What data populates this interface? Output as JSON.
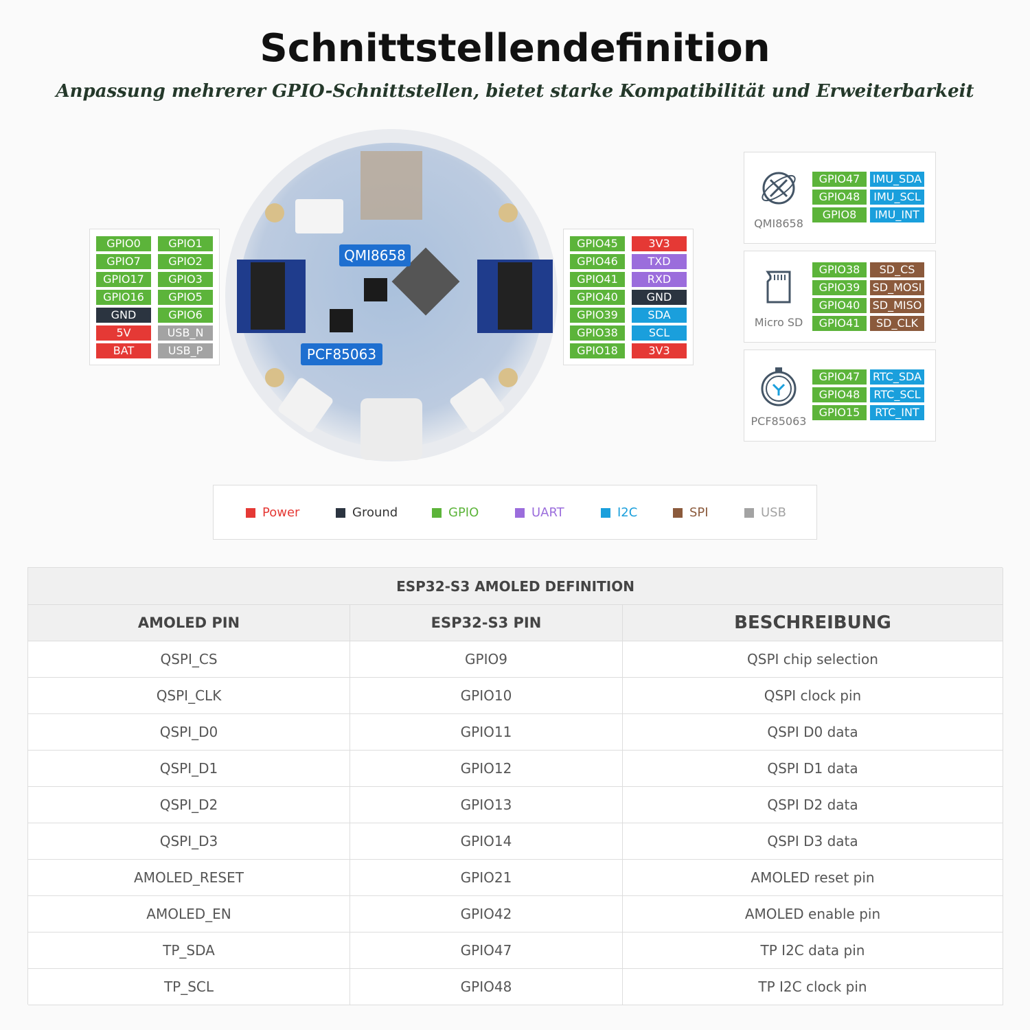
{
  "header": {
    "title": "Schnittstellendefinition",
    "subtitle": "Anpassung mehrerer GPIO-Schnittstellen, bietet starke Kompatibilität und Erweiterbarkeit"
  },
  "board": {
    "callouts": [
      "QMI8658",
      "PCF85063"
    ]
  },
  "left_header": [
    [
      {
        "label": "GPIO0",
        "color": "#5cb43a"
      },
      {
        "label": "GPIO1",
        "color": "#5cb43a"
      }
    ],
    [
      {
        "label": "GPIO7",
        "color": "#5cb43a"
      },
      {
        "label": "GPIO2",
        "color": "#5cb43a"
      }
    ],
    [
      {
        "label": "GPIO17",
        "color": "#5cb43a"
      },
      {
        "label": "GPIO3",
        "color": "#5cb43a"
      }
    ],
    [
      {
        "label": "GPIO16",
        "color": "#5cb43a"
      },
      {
        "label": "GPIO5",
        "color": "#5cb43a"
      }
    ],
    [
      {
        "label": "GND",
        "color": "#2b3440"
      },
      {
        "label": "GPIO6",
        "color": "#5cb43a"
      }
    ],
    [
      {
        "label": "5V",
        "color": "#e53935"
      },
      {
        "label": "USB_N",
        "color": "#a3a3a3"
      }
    ],
    [
      {
        "label": "BAT",
        "color": "#e53935"
      },
      {
        "label": "USB_P",
        "color": "#a3a3a3"
      }
    ]
  ],
  "right_header": [
    [
      {
        "label": "GPIO45",
        "color": "#5cb43a"
      },
      {
        "label": "3V3",
        "color": "#e53935"
      }
    ],
    [
      {
        "label": "GPIO46",
        "color": "#5cb43a"
      },
      {
        "label": "TXD",
        "color": "#9b6ddc"
      }
    ],
    [
      {
        "label": "GPIO41",
        "color": "#5cb43a"
      },
      {
        "label": "RXD",
        "color": "#9b6ddc"
      }
    ],
    [
      {
        "label": "GPIO40",
        "color": "#5cb43a"
      },
      {
        "label": "GND",
        "color": "#2b3440"
      }
    ],
    [
      {
        "label": "GPIO39",
        "color": "#5cb43a"
      },
      {
        "label": "SDA",
        "color": "#1a9fdc"
      }
    ],
    [
      {
        "label": "GPIO38",
        "color": "#5cb43a"
      },
      {
        "label": "SCL",
        "color": "#1a9fdc"
      }
    ],
    [
      {
        "label": "GPIO18",
        "color": "#5cb43a"
      },
      {
        "label": "3V3",
        "color": "#e53935"
      }
    ]
  ],
  "modules": [
    {
      "name": "QMI8658",
      "pins": [
        [
          {
            "label": "GPIO47",
            "color": "#5cb43a"
          },
          {
            "label": "IMU_SDA",
            "color": "#1a9fdc"
          }
        ],
        [
          {
            "label": "GPIO48",
            "color": "#5cb43a"
          },
          {
            "label": "IMU_SCL",
            "color": "#1a9fdc"
          }
        ],
        [
          {
            "label": "GPIO8",
            "color": "#5cb43a"
          },
          {
            "label": "IMU_INT",
            "color": "#1a9fdc"
          }
        ]
      ]
    },
    {
      "name": "Micro SD",
      "pins": [
        [
          {
            "label": "GPIO38",
            "color": "#5cb43a"
          },
          {
            "label": "SD_CS",
            "color": "#8b5a3c"
          }
        ],
        [
          {
            "label": "GPIO39",
            "color": "#5cb43a"
          },
          {
            "label": "SD_MOSI",
            "color": "#8b5a3c"
          }
        ],
        [
          {
            "label": "GPIO40",
            "color": "#5cb43a"
          },
          {
            "label": "SD_MISO",
            "color": "#8b5a3c"
          }
        ],
        [
          {
            "label": "GPIO41",
            "color": "#5cb43a"
          },
          {
            "label": "SD_CLK",
            "color": "#8b5a3c"
          }
        ]
      ]
    },
    {
      "name": "PCF85063",
      "pins": [
        [
          {
            "label": "GPIO47",
            "color": "#5cb43a"
          },
          {
            "label": "RTC_SDA",
            "color": "#1a9fdc"
          }
        ],
        [
          {
            "label": "GPIO48",
            "color": "#5cb43a"
          },
          {
            "label": "RTC_SCL",
            "color": "#1a9fdc"
          }
        ],
        [
          {
            "label": "GPIO15",
            "color": "#5cb43a"
          },
          {
            "label": "RTC_INT",
            "color": "#1a9fdc"
          }
        ]
      ]
    }
  ],
  "legend": [
    {
      "name": "Power",
      "color": "#e53935"
    },
    {
      "name": "Ground",
      "color": "#2b3440"
    },
    {
      "name": "GPIO",
      "color": "#5cb43a"
    },
    {
      "name": "UART",
      "color": "#9b6ddc"
    },
    {
      "name": "I2C",
      "color": "#1a9fdc"
    },
    {
      "name": "SPI",
      "color": "#8b5a3c"
    },
    {
      "name": "USB",
      "color": "#a3a3a3"
    }
  ],
  "table": {
    "title": "ESP32-S3 AMOLED DEFINITION",
    "columns": [
      "AMOLED PIN",
      "ESP32-S3 PIN",
      "BESCHREIBUNG"
    ],
    "rows": [
      [
        "QSPI_CS",
        "GPIO9",
        "QSPI chip selection"
      ],
      [
        "QSPI_CLK",
        "GPIO10",
        "QSPI clock pin"
      ],
      [
        "QSPI_D0",
        "GPIO11",
        "QSPI D0 data"
      ],
      [
        "QSPI_D1",
        "GPIO12",
        "QSPI D1 data"
      ],
      [
        "QSPI_D2",
        "GPIO13",
        "QSPI D2 data"
      ],
      [
        "QSPI_D3",
        "GPIO14",
        "QSPI D3 data"
      ],
      [
        "AMOLED_RESET",
        "GPIO21",
        "AMOLED reset pin"
      ],
      [
        "AMOLED_EN",
        "GPIO42",
        "AMOLED enable pin"
      ],
      [
        "TP_SDA",
        "GPIO47",
        "TP I2C data pin"
      ],
      [
        "TP_SCL",
        "GPIO48",
        "TP I2C clock pin"
      ]
    ]
  }
}
